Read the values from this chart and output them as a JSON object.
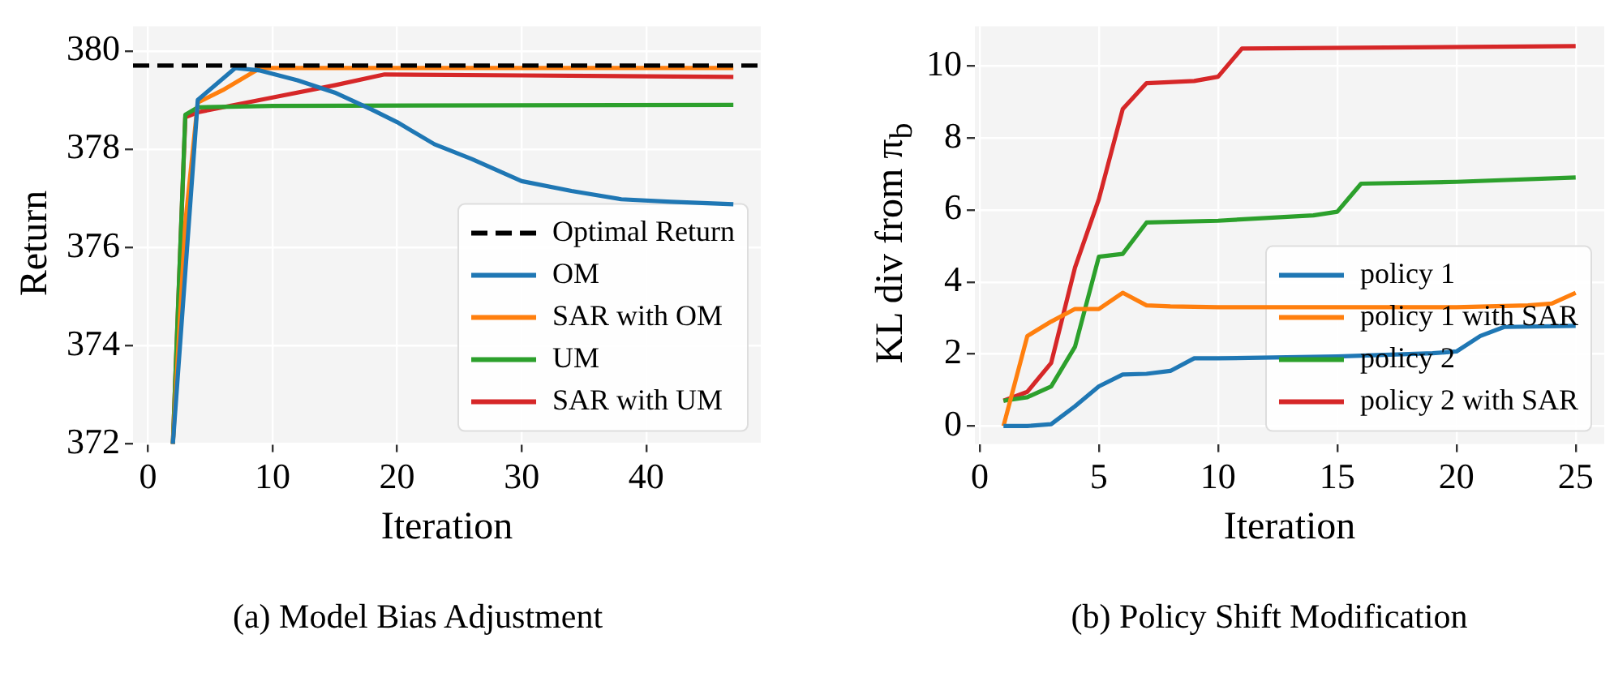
{
  "chart_data": [
    {
      "type": "line",
      "xlabel": "Iteration",
      "ylabel": "Return",
      "xlim": [
        -1.2,
        49.2
      ],
      "ylim": [
        372,
        380.5
      ],
      "xticks": [
        0,
        10,
        20,
        30,
        40
      ],
      "yticks": [
        372,
        374,
        376,
        378,
        380
      ],
      "grid": true,
      "legend": "bottom right",
      "line_style": "solid",
      "marker": "none",
      "ref_lines": [
        {
          "axis": "y",
          "value": 379.7,
          "label": "Optimal Return",
          "color": "#000000",
          "line_style": "dashed"
        }
      ],
      "series": [
        {
          "name": "OM",
          "color": "#1f77b4",
          "x": [
            2,
            4,
            7,
            9,
            12,
            15,
            18,
            20,
            23,
            26,
            30,
            34,
            38,
            42,
            47
          ],
          "values": [
            372,
            379,
            379.65,
            379.6,
            379.4,
            379.15,
            378.8,
            378.55,
            378.1,
            377.8,
            377.35,
            377.15,
            376.98,
            376.93,
            376.88
          ]
        },
        {
          "name": "SAR with OM",
          "color": "#ff7f0e",
          "x": [
            2,
            3,
            4,
            6,
            9,
            47
          ],
          "values": [
            372,
            376.5,
            378.95,
            379.2,
            379.65,
            379.65
          ]
        },
        {
          "name": "UM",
          "color": "#2ca02c",
          "x": [
            2,
            3,
            4,
            10,
            47
          ],
          "values": [
            372,
            378.7,
            378.85,
            378.88,
            378.9
          ]
        },
        {
          "name": "SAR with UM",
          "color": "#d62728",
          "x": [
            2,
            3,
            4,
            10,
            15,
            19,
            30,
            47
          ],
          "values": [
            372,
            378.65,
            378.75,
            379.05,
            379.3,
            379.52,
            379.5,
            379.47
          ]
        }
      ],
      "annotations": [
        "(a) Model Bias Adjustment"
      ]
    },
    {
      "type": "line",
      "xlabel": "Iteration",
      "ylabel": "KL div from π$_{b}$",
      "xlim": [
        -0.2,
        26.2
      ],
      "ylim": [
        -0.5,
        11.1
      ],
      "xticks": [
        0,
        5,
        10,
        15,
        20,
        25
      ],
      "yticks": [
        0,
        2,
        4,
        6,
        8,
        10
      ],
      "grid": true,
      "legend": "bottom right",
      "line_style": "solid",
      "marker": "none",
      "series": [
        {
          "name": "policy 1",
          "color": "#1f77b4",
          "x": [
            1,
            2,
            3,
            4,
            5,
            6,
            7,
            8,
            9,
            10,
            15,
            19,
            20,
            21,
            22,
            25
          ],
          "values": [
            0,
            0,
            0.05,
            0.55,
            1.1,
            1.43,
            1.45,
            1.53,
            1.88,
            1.88,
            1.93,
            2.02,
            2.07,
            2.5,
            2.75,
            2.78
          ]
        },
        {
          "name": "policy 1 with SAR",
          "color": "#ff7f0e",
          "x": [
            1,
            2,
            3,
            4,
            5,
            6,
            7,
            8,
            10,
            20,
            23,
            24,
            25
          ],
          "values": [
            0,
            2.5,
            2.9,
            3.25,
            3.25,
            3.7,
            3.35,
            3.32,
            3.3,
            3.3,
            3.35,
            3.4,
            3.7
          ]
        },
        {
          "name": "policy 2",
          "color": "#2ca02c",
          "x": [
            1,
            2,
            3,
            4,
            5,
            6,
            7,
            10,
            14,
            15,
            16,
            20,
            25
          ],
          "values": [
            0.7,
            0.8,
            1.1,
            2.2,
            4.7,
            4.78,
            5.65,
            5.7,
            5.85,
            5.95,
            6.73,
            6.78,
            6.9
          ]
        },
        {
          "name": "policy 2 with SAR",
          "color": "#d62728",
          "x": [
            1,
            2,
            3,
            4,
            5,
            6,
            7,
            9,
            10,
            11,
            25
          ],
          "values": [
            0.7,
            0.95,
            1.75,
            4.4,
            6.3,
            8.8,
            9.52,
            9.58,
            9.7,
            10.48,
            10.55
          ]
        }
      ],
      "annotations": [
        "(b) Policy Shift Modification"
      ]
    }
  ]
}
